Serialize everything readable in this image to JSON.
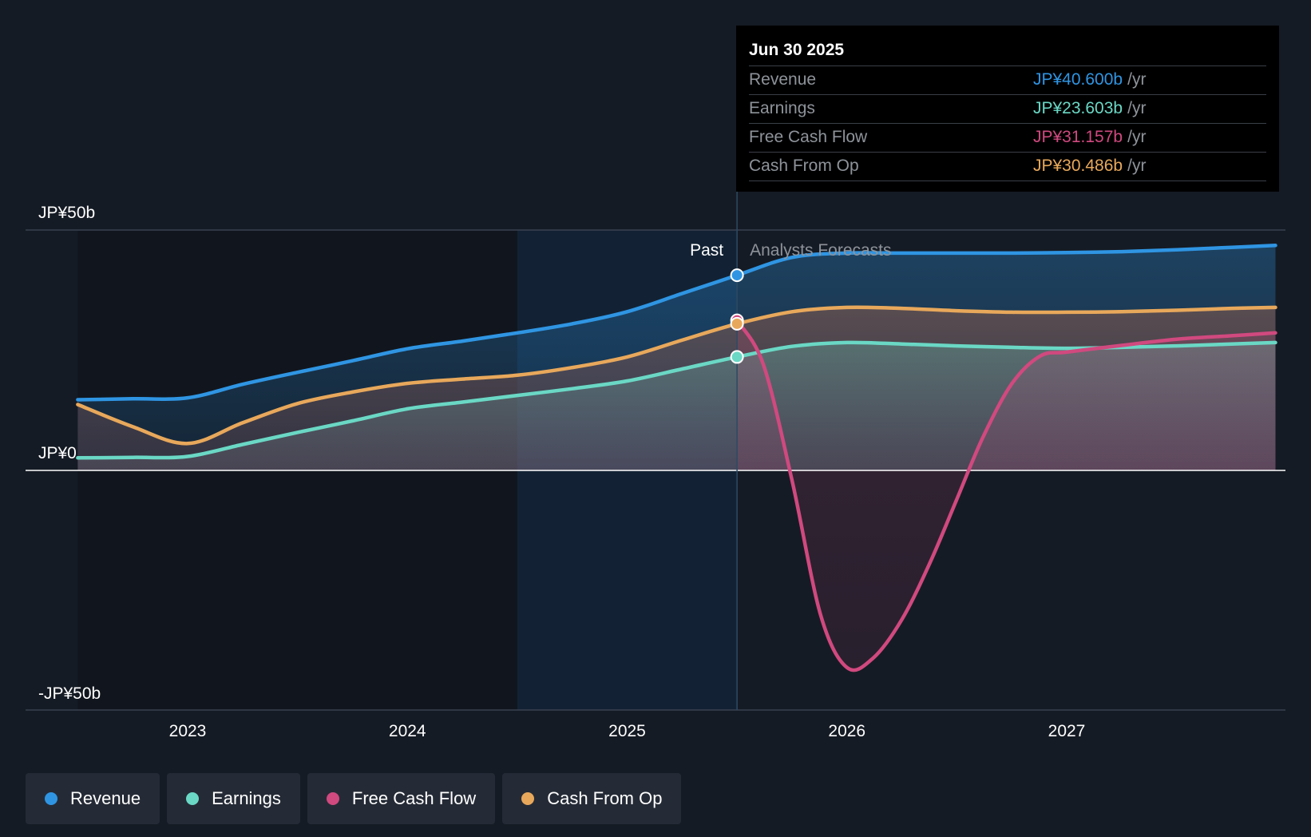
{
  "chart_data": {
    "type": "area",
    "y_axis": {
      "labels": [
        "JP¥50b",
        "JP¥0",
        "-JP¥50b"
      ],
      "ylim": [
        -50,
        50
      ],
      "unit": "JP¥ b"
    },
    "x_axis": {
      "ticks": [
        "2023",
        "2024",
        "2025",
        "2026",
        "2027"
      ],
      "xlim": [
        2022.5,
        2027.95
      ]
    },
    "past_label": "Past",
    "forecast_label": "Analysts Forecasts",
    "divider_x": 2025.5,
    "highlight_start_x": 2024.5,
    "grid": false,
    "series": [
      {
        "name": "Revenue",
        "key": "revenue",
        "color": "#2f95e3",
        "x": [
          2022.5,
          2022.75,
          2023.0,
          2023.25,
          2023.5,
          2023.75,
          2024.0,
          2024.25,
          2024.5,
          2024.75,
          2025.0,
          2025.25,
          2025.5,
          2025.75,
          2026.0,
          2026.25,
          2026.5,
          2026.75,
          2027.0,
          2027.25,
          2027.5,
          2027.75,
          2027.95
        ],
        "values": [
          14.7,
          14.9,
          15.1,
          17.9,
          20.4,
          22.8,
          25.3,
          26.9,
          28.6,
          30.5,
          33.0,
          36.8,
          40.6,
          44.3,
          45.2,
          45.2,
          45.2,
          45.2,
          45.3,
          45.5,
          45.9,
          46.4,
          46.8
        ]
      },
      {
        "name": "Earnings",
        "key": "earnings",
        "color": "#6ad8c5",
        "x": [
          2022.5,
          2022.75,
          2023.0,
          2023.25,
          2023.5,
          2023.75,
          2024.0,
          2024.25,
          2024.5,
          2024.75,
          2025.0,
          2025.25,
          2025.5,
          2025.75,
          2026.0,
          2026.25,
          2026.5,
          2026.75,
          2027.0,
          2027.25,
          2027.5,
          2027.75,
          2027.95
        ],
        "values": [
          2.6,
          2.7,
          2.9,
          5.4,
          7.9,
          10.3,
          12.8,
          14.2,
          15.6,
          17.0,
          18.6,
          21.1,
          23.6,
          25.8,
          26.6,
          26.3,
          25.9,
          25.6,
          25.4,
          25.6,
          25.9,
          26.3,
          26.6
        ]
      },
      {
        "name": "Free Cash Flow",
        "key": "fcf",
        "color": "#d0497f",
        "x": [
          2025.5,
          2025.62,
          2025.75,
          2025.88,
          2026.0,
          2026.12,
          2026.25,
          2026.38,
          2026.5,
          2026.62,
          2026.75,
          2026.88,
          2027.0,
          2027.25,
          2027.5,
          2027.75,
          2027.95
        ],
        "values": [
          31.2,
          22.0,
          -2.0,
          -30.0,
          -41.0,
          -39.0,
          -31.0,
          -19.0,
          -6.0,
          7.0,
          18.0,
          23.8,
          24.6,
          26.0,
          27.3,
          28.0,
          28.6
        ]
      },
      {
        "name": "Cash From Op",
        "key": "cfo",
        "color": "#e8a85b",
        "x": [
          2022.5,
          2022.75,
          2023.0,
          2023.25,
          2023.5,
          2023.75,
          2024.0,
          2024.25,
          2024.5,
          2024.75,
          2025.0,
          2025.25,
          2025.5,
          2025.75,
          2026.0,
          2026.25,
          2026.5,
          2026.75,
          2027.0,
          2027.25,
          2027.5,
          2027.75,
          2027.95
        ],
        "values": [
          13.7,
          9.1,
          5.6,
          9.9,
          13.9,
          16.3,
          18.1,
          19.0,
          19.8,
          21.4,
          23.6,
          27.1,
          30.5,
          33.0,
          33.9,
          33.7,
          33.2,
          32.9,
          32.9,
          33.0,
          33.3,
          33.7,
          33.9
        ]
      }
    ],
    "markers_x": 2025.5
  },
  "tooltip": {
    "date": "Jun 30 2025",
    "rows": [
      {
        "label": "Revenue",
        "value": "JP¥40.600b",
        "unit": "/yr",
        "color": "#2f95e3"
      },
      {
        "label": "Earnings",
        "value": "JP¥23.603b",
        "unit": "/yr",
        "color": "#6ad8c5"
      },
      {
        "label": "Free Cash Flow",
        "value": "JP¥31.157b",
        "unit": "/yr",
        "color": "#d0497f"
      },
      {
        "label": "Cash From Op",
        "value": "JP¥30.486b",
        "unit": "/yr",
        "color": "#e8a85b"
      }
    ]
  },
  "legend": [
    {
      "label": "Revenue",
      "color": "#2f95e3"
    },
    {
      "label": "Earnings",
      "color": "#6ad8c5"
    },
    {
      "label": "Free Cash Flow",
      "color": "#d0497f"
    },
    {
      "label": "Cash From Op",
      "color": "#e8a85b"
    }
  ]
}
